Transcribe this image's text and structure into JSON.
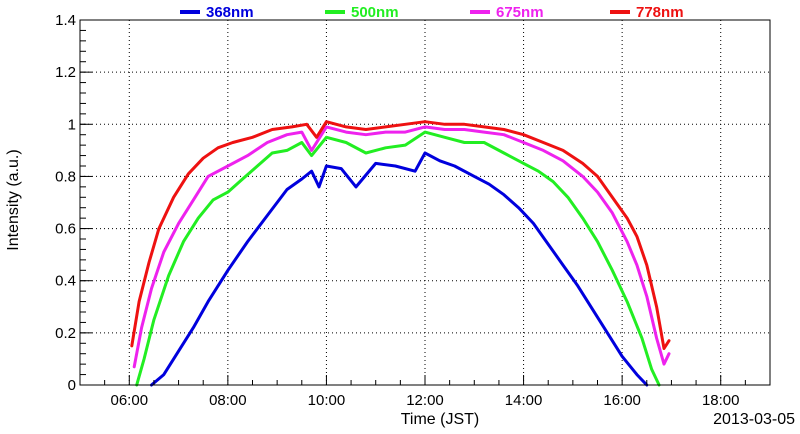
{
  "chart_data": {
    "type": "line",
    "title": "",
    "xlabel": "Time (JST)",
    "ylabel": "Intensity (a.u.)",
    "date_label": "2013-03-05",
    "xlim": [
      5.0,
      19.0
    ],
    "ylim": [
      0,
      1.4
    ],
    "grid": true,
    "legend_position": "top",
    "x_tick_labels": [
      "06:00",
      "08:00",
      "10:00",
      "12:00",
      "14:00",
      "16:00",
      "18:00"
    ],
    "x_tick_values": [
      6,
      8,
      10,
      12,
      14,
      16,
      18
    ],
    "y_tick_labels": [
      "0",
      "0.2",
      "0.4",
      "0.6",
      "0.8",
      "1",
      "1.2",
      "1.4"
    ],
    "y_tick_values": [
      0,
      0.2,
      0.4,
      0.6,
      0.8,
      1.0,
      1.2,
      1.4
    ],
    "series": [
      {
        "name": "368nm",
        "color": "#0000dd",
        "x": [
          6.45,
          6.7,
          7.0,
          7.3,
          7.6,
          8.0,
          8.4,
          8.8,
          9.2,
          9.5,
          9.7,
          9.85,
          10.0,
          10.3,
          10.6,
          11.0,
          11.4,
          11.8,
          12.0,
          12.3,
          12.6,
          13.0,
          13.3,
          13.6,
          13.9,
          14.2,
          14.5,
          14.8,
          15.1,
          15.4,
          15.7,
          16.0,
          16.3,
          16.5
        ],
        "values": [
          0.0,
          0.04,
          0.13,
          0.22,
          0.32,
          0.44,
          0.55,
          0.65,
          0.75,
          0.79,
          0.82,
          0.76,
          0.84,
          0.83,
          0.76,
          0.85,
          0.84,
          0.82,
          0.89,
          0.86,
          0.84,
          0.8,
          0.77,
          0.73,
          0.68,
          0.62,
          0.54,
          0.46,
          0.38,
          0.29,
          0.2,
          0.11,
          0.04,
          0.0
        ]
      },
      {
        "name": "500nm",
        "color": "#22ee22",
        "x": [
          6.15,
          6.3,
          6.5,
          6.8,
          7.1,
          7.4,
          7.7,
          8.0,
          8.3,
          8.6,
          8.9,
          9.2,
          9.5,
          9.7,
          10.0,
          10.4,
          10.8,
          11.2,
          11.6,
          12.0,
          12.4,
          12.8,
          13.2,
          13.6,
          14.0,
          14.3,
          14.6,
          14.9,
          15.2,
          15.5,
          15.8,
          16.1,
          16.4,
          16.6,
          16.75
        ],
        "values": [
          0.0,
          0.1,
          0.25,
          0.42,
          0.55,
          0.64,
          0.71,
          0.74,
          0.79,
          0.84,
          0.89,
          0.9,
          0.93,
          0.88,
          0.95,
          0.93,
          0.89,
          0.91,
          0.92,
          0.97,
          0.95,
          0.93,
          0.93,
          0.89,
          0.85,
          0.82,
          0.78,
          0.72,
          0.64,
          0.55,
          0.44,
          0.32,
          0.18,
          0.06,
          0.0
        ]
      },
      {
        "name": "675nm",
        "color": "#ee22ee",
        "x": [
          6.1,
          6.25,
          6.45,
          6.7,
          7.0,
          7.3,
          7.6,
          8.0,
          8.4,
          8.8,
          9.2,
          9.5,
          9.7,
          10.0,
          10.4,
          10.8,
          11.2,
          11.6,
          12.0,
          12.4,
          12.8,
          13.2,
          13.6,
          14.0,
          14.4,
          14.8,
          15.2,
          15.5,
          15.8,
          16.1,
          16.3,
          16.5,
          16.7,
          16.85,
          16.95
        ],
        "values": [
          0.07,
          0.22,
          0.37,
          0.51,
          0.62,
          0.71,
          0.8,
          0.84,
          0.88,
          0.93,
          0.96,
          0.97,
          0.9,
          0.99,
          0.97,
          0.96,
          0.97,
          0.97,
          0.99,
          0.98,
          0.98,
          0.97,
          0.96,
          0.93,
          0.9,
          0.86,
          0.8,
          0.74,
          0.66,
          0.55,
          0.46,
          0.34,
          0.18,
          0.08,
          0.12
        ]
      },
      {
        "name": "778nm",
        "color": "#ee1111",
        "x": [
          6.05,
          6.2,
          6.4,
          6.6,
          6.9,
          7.2,
          7.5,
          7.8,
          8.1,
          8.5,
          8.9,
          9.3,
          9.6,
          9.8,
          10.0,
          10.4,
          10.8,
          11.2,
          11.6,
          12.0,
          12.4,
          12.8,
          13.2,
          13.6,
          14.0,
          14.4,
          14.8,
          15.2,
          15.5,
          15.8,
          16.1,
          16.3,
          16.5,
          16.7,
          16.85,
          16.95
        ],
        "values": [
          0.15,
          0.32,
          0.47,
          0.6,
          0.72,
          0.81,
          0.87,
          0.91,
          0.93,
          0.95,
          0.98,
          0.99,
          1.0,
          0.95,
          1.01,
          0.99,
          0.98,
          0.99,
          1.0,
          1.01,
          1.0,
          1.0,
          0.99,
          0.98,
          0.96,
          0.93,
          0.9,
          0.85,
          0.8,
          0.72,
          0.64,
          0.57,
          0.46,
          0.3,
          0.14,
          0.17
        ]
      }
    ]
  }
}
